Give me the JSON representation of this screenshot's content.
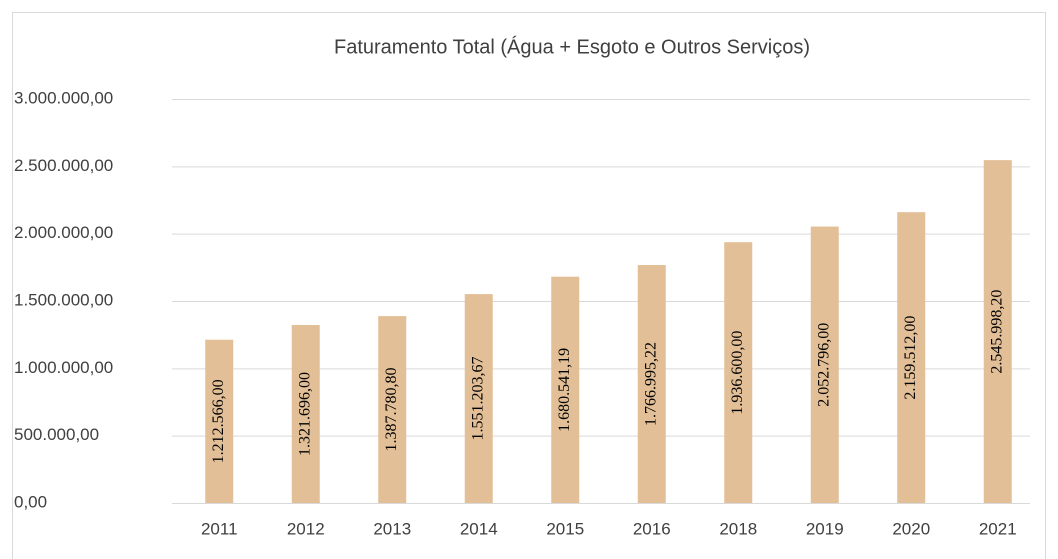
{
  "chart_data": {
    "type": "bar",
    "title": "Faturamento Total (Água + Esgoto e Outros Serviços)",
    "categories": [
      "2011",
      "2012",
      "2013",
      "2014",
      "2015",
      "2016",
      "2018",
      "2019",
      "2020",
      "2021"
    ],
    "values": [
      1212566.0,
      1321696.0,
      1387780.8,
      1551203.67,
      1680541.19,
      1766995.22,
      1936600.0,
      2052796.0,
      2159512.0,
      2545998.2
    ],
    "value_labels": [
      "1.212.566,00",
      "1.321.696,00",
      "1.387.780,80",
      "1.551.203,67",
      "1.680.541,19",
      "1.766.995,22",
      "1.936.600,00",
      "2.052.796,00",
      "2.159.512,00",
      "2.545.998,20"
    ],
    "color": "#e2bf96",
    "ylim": [
      0,
      3000000
    ],
    "yticks": [
      {
        "value": 0,
        "label": "0,00"
      },
      {
        "value": 500000,
        "label": "500.000,00"
      },
      {
        "value": 1000000,
        "label": "1.000.000,00"
      },
      {
        "value": 1500000,
        "label": "1.500.000,00"
      },
      {
        "value": 2000000,
        "label": "2.000.000,00"
      },
      {
        "value": 2500000,
        "label": "2.500.000,00"
      },
      {
        "value": 3000000,
        "label": "3.000.000,00"
      }
    ],
    "grid": true
  }
}
